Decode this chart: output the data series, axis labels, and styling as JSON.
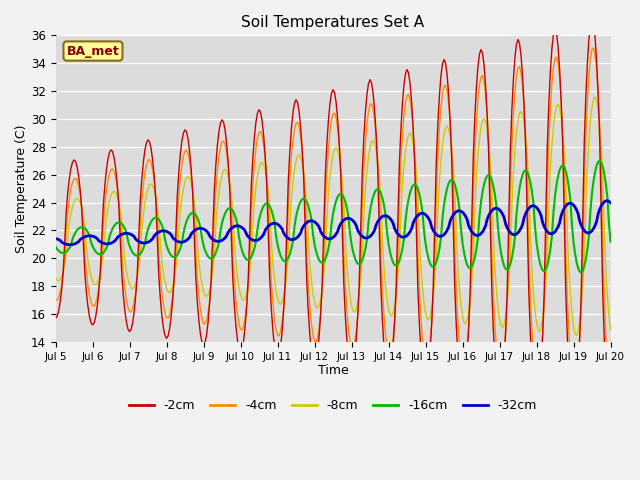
{
  "title": "Soil Temperatures Set A",
  "xlabel": "Time",
  "ylabel": "Soil Temperature (C)",
  "ylim": [
    14,
    36
  ],
  "background_color": "#dcdcdc",
  "label_text": "BA_met",
  "series": [
    {
      "label": "-2cm",
      "color": "#cc0000",
      "lw": 1.0
    },
    {
      "label": "-4cm",
      "color": "#ff8c00",
      "lw": 1.0
    },
    {
      "label": "-8cm",
      "color": "#cccc00",
      "lw": 1.0
    },
    {
      "label": "-16cm",
      "color": "#00bb00",
      "lw": 1.5
    },
    {
      "label": "-32cm",
      "color": "#0000cc",
      "lw": 2.0
    }
  ],
  "tick_labels": [
    "Jul 5",
    "Jul 6",
    "Jul 7",
    "Jul 8",
    "Jul 9",
    "Jul 10",
    "Jul 11",
    "Jul 12",
    "Jul 13",
    "Jul 14",
    "Jul 15",
    "Jul 16",
    "Jul 17",
    "Jul 18",
    "Jul 19",
    "Jul 20"
  ]
}
